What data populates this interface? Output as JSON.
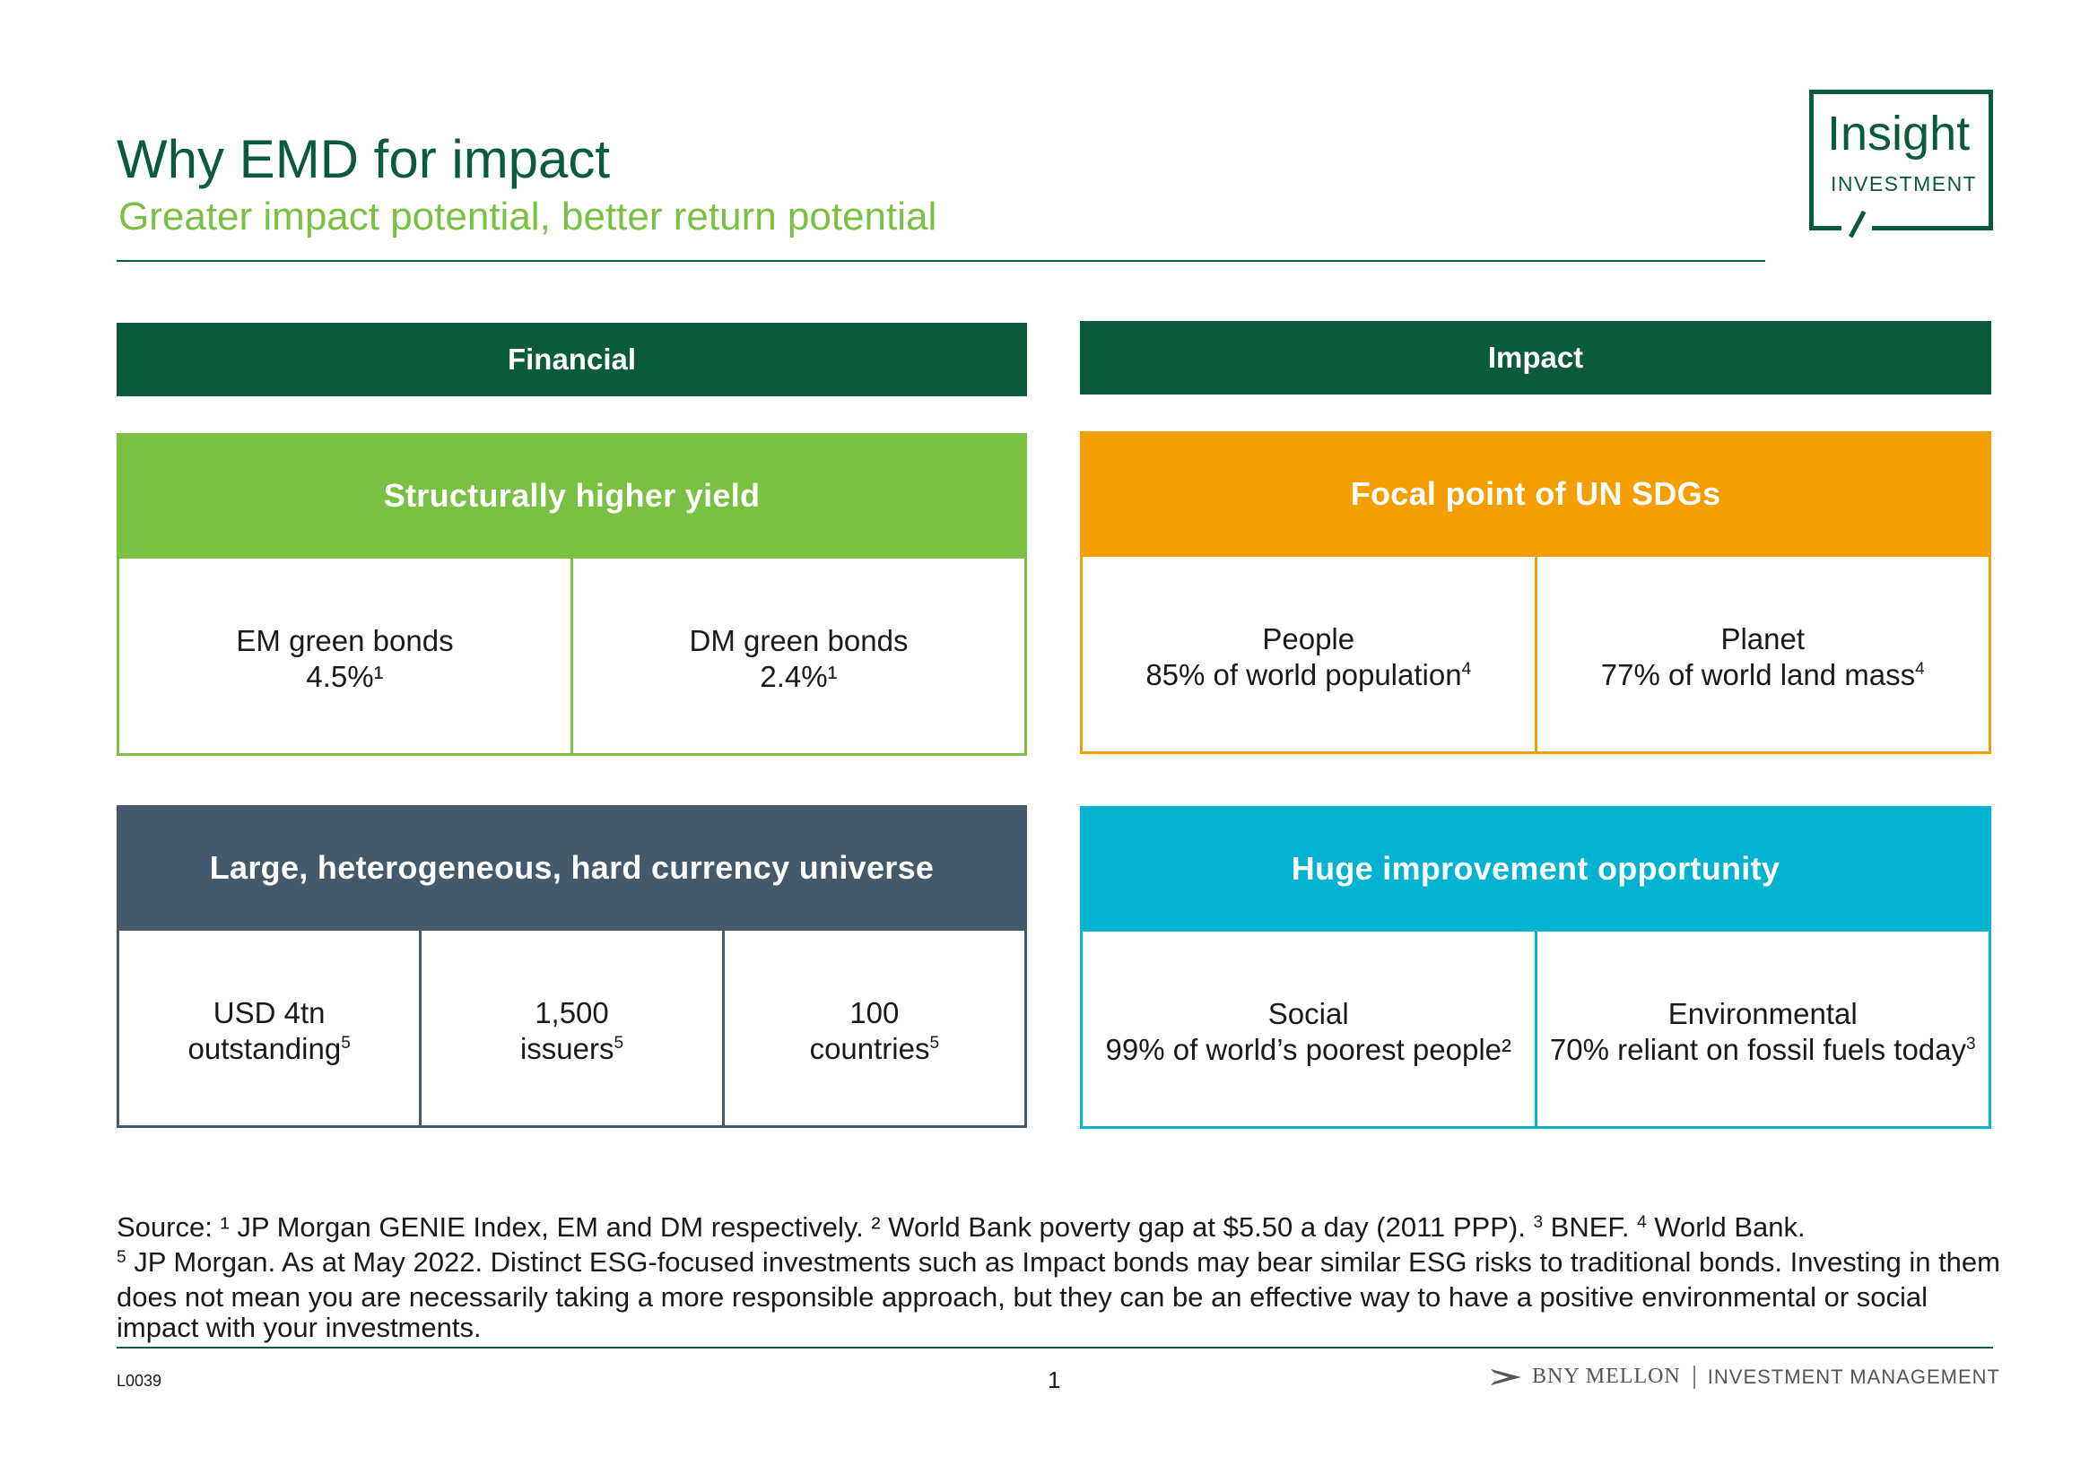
{
  "header": {
    "title": "Why EMD for impact",
    "subtitle": "Greater impact potential, better return potential"
  },
  "logo": {
    "word": "Insight",
    "sub": "INVESTMENT"
  },
  "colors": {
    "dark_green": "#0a5a3c",
    "light_green": "#7ac143",
    "orange": "#f59e00",
    "slate": "#44596b",
    "cyan": "#00b3d1"
  },
  "columns": {
    "financial": "Financial",
    "impact": "Impact"
  },
  "panels": {
    "yield": {
      "title": "Structurally higher yield",
      "cells": [
        {
          "label": "EM green bonds",
          "value": "4.5%¹"
        },
        {
          "label": "DM green bonds",
          "value": "2.4%¹"
        }
      ]
    },
    "sdgs": {
      "title": "Focal point of UN SDGs",
      "cells": [
        {
          "label": "People",
          "value": "85% of world population",
          "sup": "4"
        },
        {
          "label": "Planet",
          "value": "77% of world land mass",
          "sup": "4"
        }
      ]
    },
    "universe": {
      "title": "Large, heterogeneous, hard currency universe",
      "cells": [
        {
          "label": "USD 4tn",
          "value": "outstanding",
          "sup": "5"
        },
        {
          "label": "1,500",
          "value": "issuers",
          "sup": "5"
        },
        {
          "label": "100",
          "value": "countries",
          "sup": "5"
        }
      ]
    },
    "improvement": {
      "title": "Huge improvement opportunity",
      "cells": [
        {
          "label": "Social",
          "value": "99% of world’s poorest people²"
        },
        {
          "label": "Environmental",
          "value": "70% reliant on fossil fuels today",
          "sup": "3"
        }
      ]
    }
  },
  "footnote": {
    "part1": "Source: ¹ JP Morgan GENIE Index, EM and DM respectively. ² World Bank poverty gap at $5.50 a day (2011 PPP). ",
    "sup3": "3",
    "part2": " BNEF. ",
    "sup4": "4",
    "part3": " World Bank.",
    "sup5": "5",
    "part4": " JP Morgan. As at May 2022. Distinct ESG-focused investments such as Impact bonds may bear similar ESG risks to traditional bonds. Investing in them does not mean you are necessarily taking a more responsible approach, but they can be an effective way to have a positive environmental or social impact with your investments."
  },
  "footer": {
    "code": "L0039",
    "page": "1",
    "brand": "BNY MELLON",
    "division": "INVESTMENT MANAGEMENT"
  }
}
